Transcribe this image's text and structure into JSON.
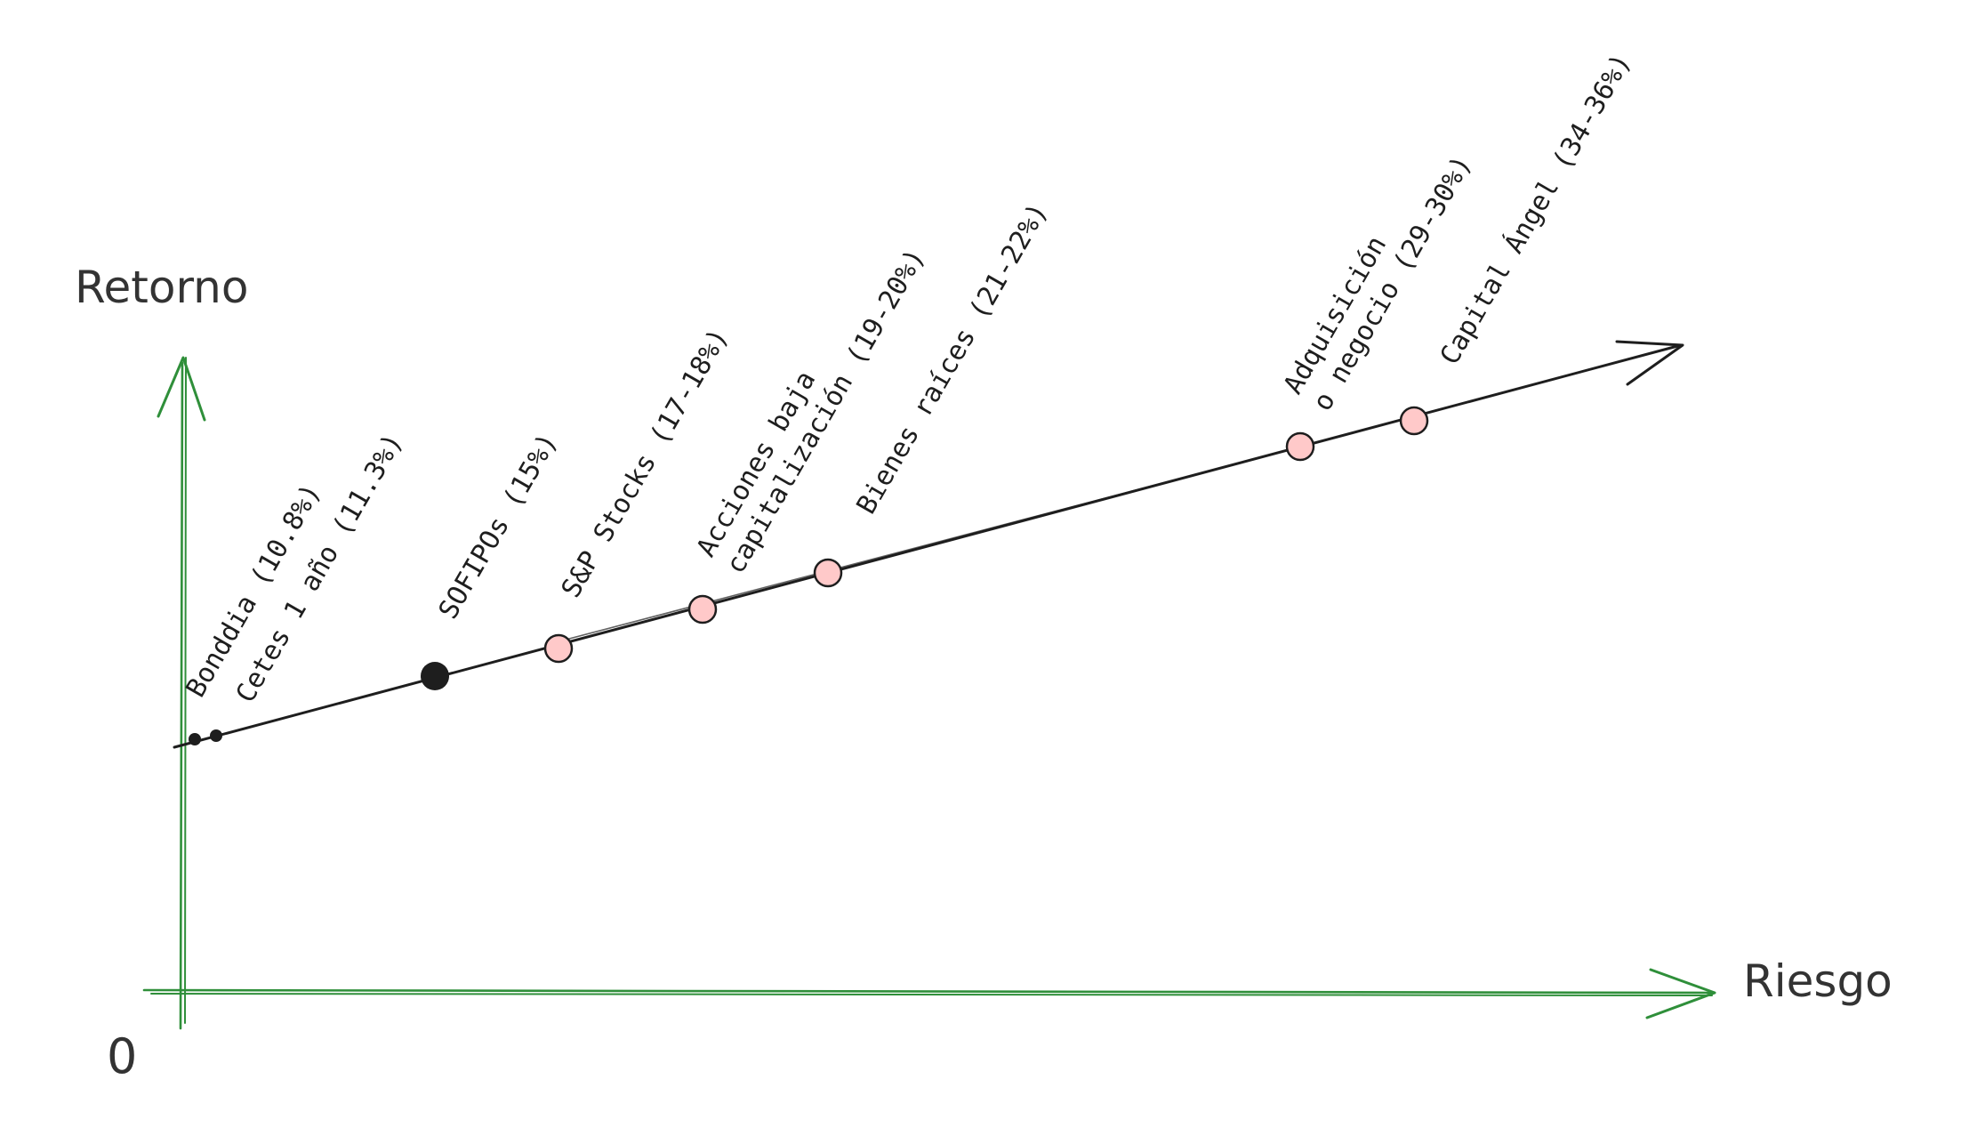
{
  "axes": {
    "y_title": "Retorno",
    "x_title": "Riesgo",
    "origin": "0",
    "color": "#2f8f3a"
  },
  "trend_line_color": "#1e1e1e",
  "points": [
    {
      "lines": [
        "Bonddia (10.8%)"
      ],
      "style": "small-dot"
    },
    {
      "lines": [
        "Cetes 1 año (11.3%)"
      ],
      "style": "small-dot"
    },
    {
      "lines": [
        "SOFIPOs (15%)"
      ],
      "style": "large-dot"
    },
    {
      "lines": [
        "S&P Stocks (17-18%)"
      ],
      "style": "pink-circle"
    },
    {
      "lines": [
        "Acciones baja",
        "capitalización (19-20%)"
      ],
      "style": "pink-circle"
    },
    {
      "lines": [
        "Bienes raíces (21-22%)"
      ],
      "style": "pink-circle"
    },
    {
      "lines": [
        "Adquisición",
        "o negocio (29-30%)"
      ],
      "style": "pink-circle"
    },
    {
      "lines": [
        "Capital Ángel (34-36%)"
      ],
      "style": "pink-circle"
    }
  ],
  "colors": {
    "dot": "#1e1e1e",
    "pink_fill": "#ffc9c9",
    "pink_stroke": "#1e1e1e"
  }
}
